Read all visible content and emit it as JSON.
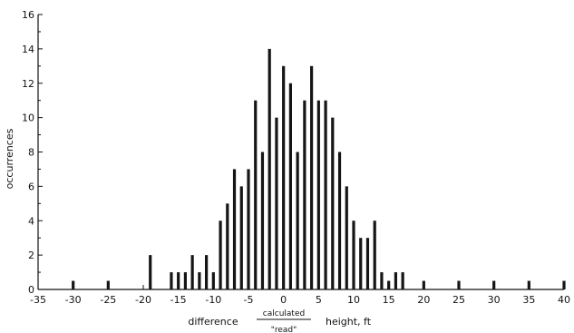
{
  "chart_data": {
    "type": "bar",
    "ylabel": "occurrences",
    "xlabel_prefix": "difference",
    "xlabel_numerator": "calculated",
    "xlabel_denominator": "\"read\"",
    "xlabel_suffix": "height, ft",
    "xlim": [
      -35,
      40
    ],
    "ylim": [
      0,
      16
    ],
    "x_ticks": [
      -35,
      -30,
      -25,
      -20,
      -15,
      -10,
      -5,
      0,
      5,
      10,
      15,
      20,
      25,
      30,
      35,
      40
    ],
    "y_ticks": [
      0,
      2,
      4,
      6,
      8,
      10,
      12,
      14,
      16
    ],
    "grid": false,
    "x": [
      -30,
      -25,
      -19,
      -16,
      -15,
      -14,
      -13,
      -12,
      -11,
      -10,
      -9,
      -8,
      -7,
      -6,
      -5,
      -4,
      -3,
      -2,
      -1,
      0,
      1,
      2,
      3,
      4,
      5,
      6,
      7,
      8,
      9,
      10,
      11,
      12,
      13,
      14,
      15,
      16,
      17,
      20,
      25,
      30,
      35,
      40
    ],
    "values": [
      0.5,
      0.5,
      2,
      1,
      1,
      1,
      2,
      1,
      2,
      1,
      4,
      5,
      7,
      6,
      7,
      11,
      8,
      14,
      10,
      13,
      12,
      8,
      11,
      13,
      11,
      11,
      10,
      8,
      6,
      4,
      3,
      3,
      4,
      1,
      0.5,
      1,
      1,
      0.5,
      0.5,
      0.5,
      0.5,
      0.5
    ]
  }
}
